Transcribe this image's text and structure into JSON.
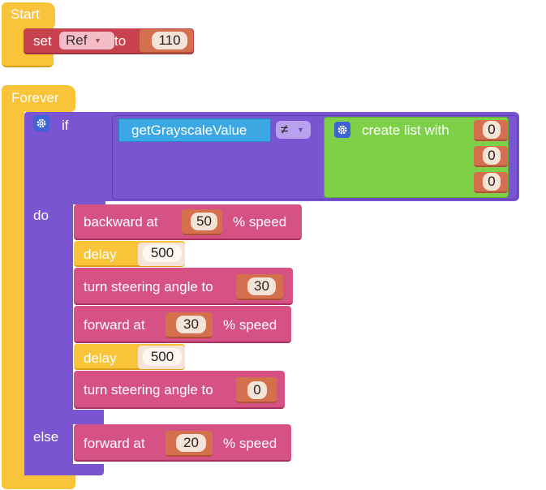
{
  "start_block": {
    "label": "Start",
    "set_label": "set",
    "variable": "Ref",
    "to_label": "to",
    "value": "110"
  },
  "forever_block": {
    "label": "Forever",
    "if_label": "if",
    "do_label": "do",
    "else_label": "else",
    "condition": {
      "left": "getGrayscaleValue",
      "operator": "≠",
      "list_label": "create list with",
      "list_items": [
        "0",
        "0",
        "0"
      ]
    },
    "do_blocks": [
      {
        "type": "backward",
        "label": "backward at",
        "value": "50",
        "suffix": "% speed"
      },
      {
        "type": "delay",
        "label": "delay",
        "value": "500"
      },
      {
        "type": "turn",
        "label": "turn steering angle to",
        "value": "30"
      },
      {
        "type": "forward",
        "label": "forward at",
        "value": "30",
        "suffix": "% speed"
      },
      {
        "type": "delay",
        "label": "delay",
        "value": "500"
      },
      {
        "type": "turn",
        "label": "turn steering angle to",
        "value": "0"
      }
    ],
    "else_blocks": [
      {
        "type": "forward",
        "label": "forward at",
        "value": "20",
        "suffix": "% speed"
      }
    ]
  },
  "icons": {
    "gear": "gear-icon",
    "dropdown": "dropdown-arrow-icon"
  },
  "colors": {
    "event": "#f9c33a",
    "variable": "#c7414f",
    "logic": "#7a55d2",
    "list": "#7fd049",
    "sensor": "#3ba8e3",
    "motion": "#d65285",
    "number": "#d4704e"
  }
}
